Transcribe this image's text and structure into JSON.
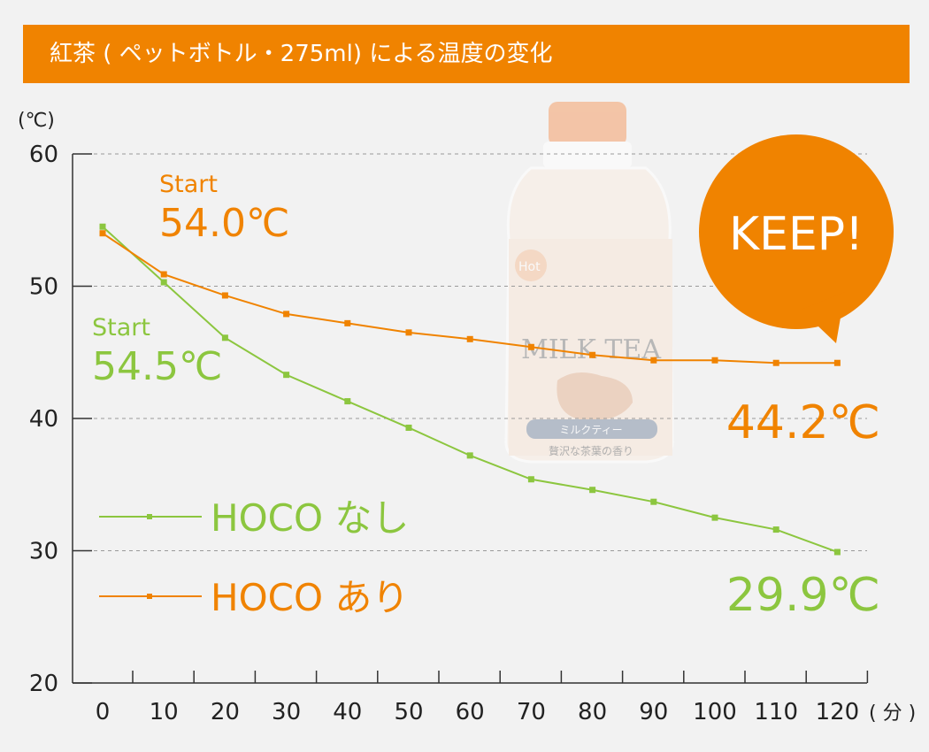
{
  "title": "紅茶 ( ペットボトル・275ml) による温度の変化",
  "yunit": "(℃)",
  "xunit": "( 分 )",
  "keep": "KEEP!",
  "image": {
    "label": "MILK TEA",
    "sub": "ミルクティー",
    "sub2": "贅沢な茶葉の香り",
    "badge": "Hot"
  },
  "annotations": {
    "orange_start_label": "Start",
    "orange_start_value": "54.0℃",
    "green_start_label": "Start",
    "green_start_value": "54.5℃",
    "orange_end_value": "44.2℃",
    "green_end_value": "29.9℃"
  },
  "colors": {
    "green": "#8cc63f",
    "orange": "#f08300",
    "title_bg": "#f08300",
    "background": "#f2f2f2"
  },
  "chart_data": {
    "type": "line",
    "x": [
      0,
      10,
      20,
      30,
      40,
      50,
      60,
      70,
      80,
      90,
      100,
      110,
      120
    ],
    "xticks": [
      "0",
      "10",
      "20",
      "30",
      "40",
      "50",
      "60",
      "70",
      "80",
      "90",
      "100",
      "110",
      "120"
    ],
    "yticks": [
      "20",
      "30",
      "40",
      "50",
      "60"
    ],
    "ylim": [
      20,
      60
    ],
    "grid": true,
    "series": [
      {
        "name": "HOCO なし",
        "color": "#8cc63f",
        "values": [
          54.5,
          50.3,
          46.1,
          43.3,
          41.3,
          39.3,
          37.2,
          35.4,
          34.6,
          33.7,
          32.5,
          31.6,
          29.9
        ]
      },
      {
        "name": "HOCO あり",
        "color": "#f08300",
        "values": [
          54.0,
          50.9,
          49.3,
          47.9,
          47.2,
          46.5,
          46.0,
          45.4,
          44.8,
          44.4,
          44.4,
          44.2,
          44.2
        ]
      }
    ]
  }
}
